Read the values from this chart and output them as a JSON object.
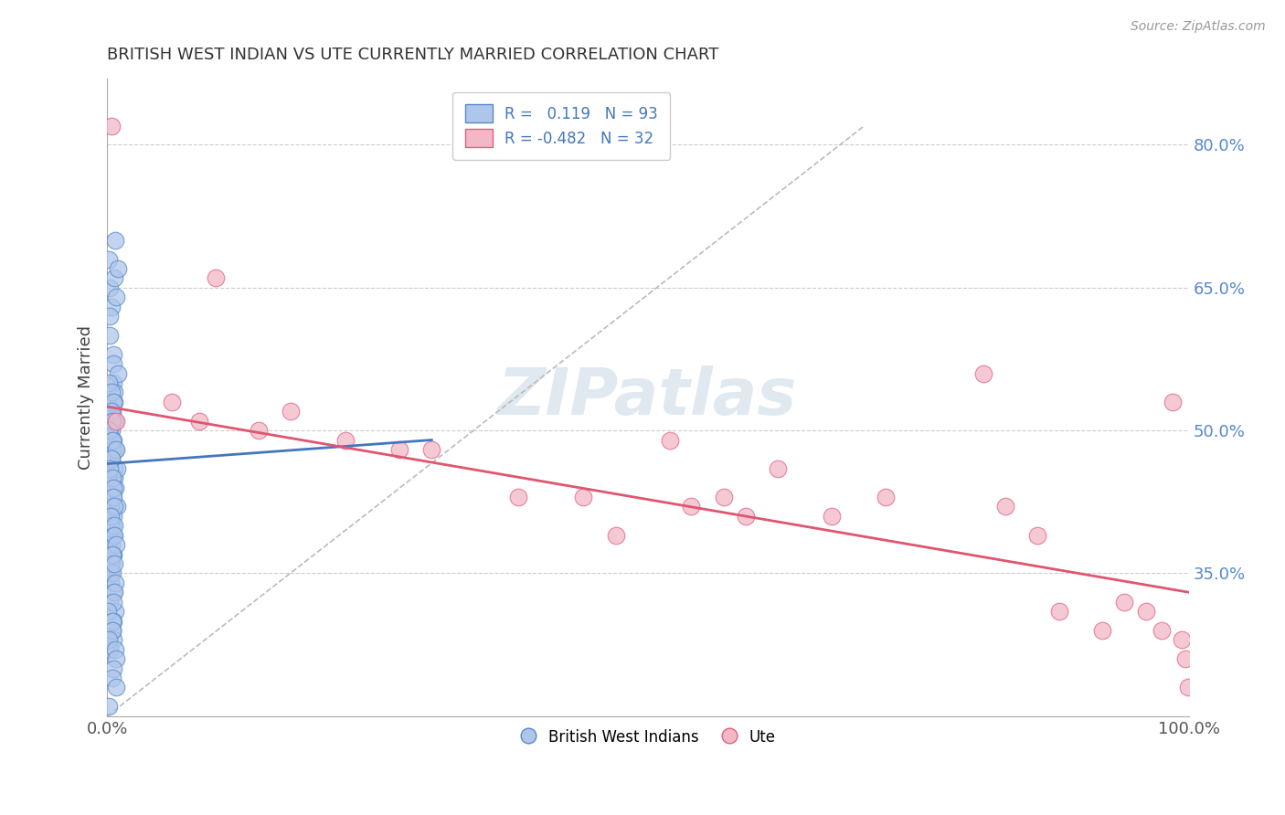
{
  "title": "BRITISH WEST INDIAN VS UTE CURRENTLY MARRIED CORRELATION CHART",
  "source": "Source: ZipAtlas.com",
  "ylabel": "Currently Married",
  "xlim": [
    0.0,
    1.0
  ],
  "ylim": [
    0.2,
    0.87
  ],
  "yticks": [
    0.35,
    0.5,
    0.65,
    0.8
  ],
  "ytick_labels": [
    "35.0%",
    "50.0%",
    "65.0%",
    "80.0%"
  ],
  "blue_r": "0.119",
  "blue_n": "93",
  "pink_r": "-0.482",
  "pink_n": "32",
  "blue_color": "#aec6ea",
  "blue_edge": "#5588cc",
  "pink_color": "#f2b8c6",
  "pink_edge": "#e06080",
  "blue_line_color": "#4477bb",
  "pink_line_color": "#e05570",
  "legend_text_color": "#4477bb",
  "grid_color": "#cccccc",
  "watermark_color": "#e0e8f0",
  "blue_scatter_x": [
    0.003,
    0.005,
    0.002,
    0.004,
    0.006,
    0.003,
    0.007,
    0.004,
    0.003,
    0.005,
    0.004,
    0.003,
    0.006,
    0.002,
    0.005,
    0.004,
    0.003,
    0.002,
    0.004,
    0.003,
    0.005,
    0.003,
    0.004,
    0.002,
    0.006,
    0.003,
    0.004,
    0.003,
    0.002,
    0.005,
    0.004,
    0.002,
    0.003,
    0.005,
    0.002,
    0.004,
    0.003,
    0.005,
    0.004,
    0.003,
    0.006,
    0.003,
    0.002,
    0.004,
    0.005,
    0.003,
    0.004,
    0.006,
    0.002,
    0.005,
    0.004,
    0.003,
    0.004,
    0.002,
    0.005,
    0.003,
    0.006,
    0.002,
    0.004,
    0.005,
    0.003,
    0.004,
    0.002,
    0.005,
    0.003,
    0.002,
    0.004,
    0.005,
    0.003,
    0.004,
    0.007,
    0.003,
    0.004,
    0.005,
    0.002,
    0.004,
    0.003,
    0.005,
    0.008,
    0.004,
    0.003,
    0.004,
    0.005,
    0.003,
    0.004,
    0.002,
    0.006,
    0.004,
    0.005,
    0.003,
    0.004,
    0.005,
    0.003
  ],
  "blue_scatter_y": [
    0.68,
    0.7,
    0.65,
    0.66,
    0.67,
    0.63,
    0.64,
    0.62,
    0.6,
    0.58,
    0.57,
    0.55,
    0.54,
    0.53,
    0.52,
    0.51,
    0.5,
    0.49,
    0.48,
    0.47,
    0.46,
    0.45,
    0.44,
    0.43,
    0.42,
    0.41,
    0.4,
    0.39,
    0.38,
    0.37,
    0.36,
    0.35,
    0.34,
    0.33,
    0.32,
    0.31,
    0.3,
    0.29,
    0.28,
    0.27,
    0.53,
    0.52,
    0.51,
    0.5,
    0.49,
    0.48,
    0.47,
    0.46,
    0.45,
    0.44,
    0.43,
    0.42,
    0.41,
    0.4,
    0.39,
    0.38,
    0.37,
    0.36,
    0.35,
    0.34,
    0.33,
    0.32,
    0.31,
    0.3,
    0.29,
    0.28,
    0.27,
    0.26,
    0.25,
    0.24,
    0.56,
    0.55,
    0.54,
    0.53,
    0.52,
    0.51,
    0.5,
    0.49,
    0.48,
    0.47,
    0.46,
    0.45,
    0.44,
    0.43,
    0.42,
    0.41,
    0.4,
    0.39,
    0.38,
    0.37,
    0.36,
    0.23,
    0.21
  ],
  "pink_scatter_x": [
    0.004,
    0.008,
    0.06,
    0.085,
    0.14,
    0.22,
    0.27,
    0.17,
    0.38,
    0.1,
    0.44,
    0.3,
    0.47,
    0.52,
    0.57,
    0.59,
    0.62,
    0.67,
    0.72,
    0.54,
    0.81,
    0.83,
    0.86,
    0.88,
    0.92,
    0.94,
    0.96,
    0.975,
    0.985,
    0.993,
    0.997,
    0.999
  ],
  "pink_scatter_y": [
    0.82,
    0.51,
    0.53,
    0.51,
    0.5,
    0.49,
    0.48,
    0.52,
    0.43,
    0.66,
    0.43,
    0.48,
    0.39,
    0.49,
    0.43,
    0.41,
    0.46,
    0.41,
    0.43,
    0.42,
    0.56,
    0.42,
    0.39,
    0.31,
    0.29,
    0.32,
    0.31,
    0.29,
    0.53,
    0.28,
    0.26,
    0.23
  ],
  "blue_line_x": [
    0.0,
    0.3
  ],
  "blue_line_y": [
    0.465,
    0.49
  ],
  "pink_line_x": [
    0.0,
    1.0
  ],
  "pink_line_y": [
    0.525,
    0.33
  ],
  "dash_line_x": [
    0.0,
    0.7
  ],
  "dash_line_y": [
    0.2,
    0.82
  ]
}
